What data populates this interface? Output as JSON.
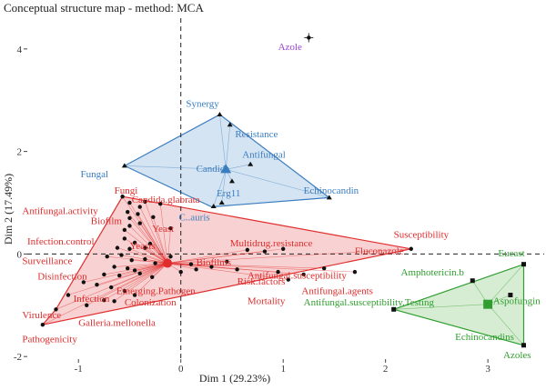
{
  "chart_data": {
    "type": "scatter",
    "title": "Conceptual structure map - method: MCA",
    "xlabel": "Dim 1 (29.23%)",
    "ylabel": "Dim 2 (17.49%)",
    "xlim": [
      -1.5,
      3.55
    ],
    "ylim": [
      -2.05,
      4.6
    ],
    "x_ticks": [
      -1,
      0,
      1,
      2,
      3
    ],
    "y_ticks": [
      -2,
      0,
      2,
      4
    ],
    "grid": "off",
    "reference_lines": {
      "x": 0,
      "y": 0,
      "style": "dashed"
    },
    "colors": {
      "red": "#e02c2c",
      "blue": "#3a7dbf",
      "green": "#2f9e2f",
      "purple": "#9b3fcf",
      "point": "#111111"
    },
    "clusters": [
      {
        "color": "red",
        "fill": "#f6c3c3",
        "hull": [
          [
            -0.57,
            1.12
          ],
          [
            2.25,
            0.1
          ],
          [
            -1.35,
            -1.38
          ],
          [
            -1.22,
            -1.08
          ]
        ],
        "centroid": [
          -0.13,
          -0.18
        ],
        "points": [
          [
            -0.57,
            1.12
          ],
          [
            -0.5,
            1.0
          ],
          [
            -0.35,
            1.02
          ],
          [
            -0.4,
            0.92
          ],
          [
            -0.2,
            0.98
          ],
          [
            -0.52,
            0.82
          ],
          [
            -0.5,
            0.7
          ],
          [
            -0.42,
            0.78
          ],
          [
            -0.27,
            0.72
          ],
          [
            -0.5,
            0.55
          ],
          [
            -0.55,
            0.47
          ],
          [
            -0.4,
            0.6
          ],
          [
            -0.1,
            0.5
          ],
          [
            -0.55,
            0.3
          ],
          [
            -0.45,
            0.22
          ],
          [
            -0.3,
            0.2
          ],
          [
            -0.62,
            0.12
          ],
          [
            -0.5,
            0.1
          ],
          [
            -0.35,
            0.12
          ],
          [
            -0.58,
            -0.02
          ],
          [
            -0.72,
            -0.05
          ],
          [
            -0.48,
            -0.12
          ],
          [
            -0.35,
            -0.1
          ],
          [
            -0.25,
            -0.18
          ],
          [
            -0.65,
            -0.25
          ],
          [
            -0.52,
            -0.28
          ],
          [
            -0.45,
            -0.32
          ],
          [
            -0.75,
            -0.4
          ],
          [
            -0.6,
            -0.42
          ],
          [
            -0.4,
            -0.38
          ],
          [
            -0.28,
            -0.45
          ],
          [
            -0.95,
            -0.55
          ],
          [
            -0.82,
            -0.6
          ],
          [
            -0.68,
            -0.65
          ],
          [
            -0.55,
            -0.72
          ],
          [
            -0.45,
            -0.8
          ],
          [
            -1.1,
            -0.8
          ],
          [
            -0.75,
            -0.9
          ],
          [
            -0.65,
            -0.92
          ],
          [
            -0.92,
            -1.0
          ],
          [
            -0.1,
            -0.05
          ],
          [
            0.1,
            -0.2
          ],
          [
            0.0,
            -0.35
          ],
          [
            0.15,
            -0.3
          ],
          [
            0.3,
            -0.25
          ],
          [
            0.45,
            -0.15
          ],
          [
            0.55,
            -0.3
          ],
          [
            0.65,
            0.08
          ],
          [
            0.82,
            0.05
          ],
          [
            1.0,
            0.1
          ],
          [
            0.95,
            -0.35
          ],
          [
            1.05,
            -0.5
          ],
          [
            1.2,
            -0.4
          ],
          [
            1.4,
            -0.28
          ],
          [
            1.7,
            -0.35
          ],
          [
            2.25,
            0.1
          ],
          [
            -1.22,
            -1.08
          ],
          [
            -1.35,
            -1.38
          ]
        ],
        "labels": [
          [
            "Fungi",
            -0.65,
            1.18
          ],
          [
            "Candida.glabrata",
            -0.48,
            1.0
          ],
          [
            "Antifungal.activity",
            -1.55,
            0.78
          ],
          [
            "Biofilm",
            -0.88,
            0.58
          ],
          [
            "Yeast",
            -0.28,
            0.43
          ],
          [
            "Infection.control",
            -1.5,
            0.18
          ],
          [
            "Yeasts",
            -0.5,
            0.1
          ],
          [
            "Surveillance",
            -1.55,
            -0.2
          ],
          [
            "Multidrug.resistance",
            0.48,
            0.15
          ],
          [
            "Susceptibility",
            2.08,
            0.32
          ],
          [
            "Fluconazole",
            1.7,
            0.0
          ],
          [
            "Biofilms",
            0.15,
            -0.22
          ],
          [
            "Antifungal.susceptibility",
            0.65,
            -0.48
          ],
          [
            "Disinfection",
            -1.4,
            -0.5
          ],
          [
            "Risk.factors",
            0.55,
            -0.6
          ],
          [
            "Antifungal.agents",
            1.18,
            -0.78
          ],
          [
            "Emerging.Pathogen",
            -0.63,
            -0.78
          ],
          [
            "Infection",
            -1.05,
            -0.93
          ],
          [
            "Colonization",
            -0.55,
            -1.0
          ],
          [
            "Mortality",
            0.65,
            -0.98
          ],
          [
            "Virulence",
            -1.55,
            -1.25
          ],
          [
            "Galleria.mellonella",
            -1.0,
            -1.4
          ],
          [
            "Pathogenicity",
            -1.55,
            -1.72
          ]
        ]
      },
      {
        "color": "blue",
        "fill": "#c7dbee",
        "hull": [
          [
            -0.55,
            1.72
          ],
          [
            0.38,
            2.72
          ],
          [
            1.45,
            1.1
          ],
          [
            0.3,
            0.92
          ]
        ],
        "centroid": [
          0.44,
          1.65
        ],
        "points": [
          [
            -0.55,
            1.72
          ],
          [
            0.38,
            2.72
          ],
          [
            0.48,
            2.52
          ],
          [
            0.68,
            1.75
          ],
          [
            0.5,
            1.42
          ],
          [
            0.4,
            1.0
          ],
          [
            0.32,
            0.93
          ],
          [
            1.45,
            1.1
          ]
        ],
        "labels": [
          [
            "Synergy",
            0.05,
            2.87
          ],
          [
            "Resistance",
            0.53,
            2.28
          ],
          [
            "Antifungal",
            0.6,
            1.88
          ],
          [
            "Candida",
            0.15,
            1.6
          ],
          [
            "Fungal",
            -0.98,
            1.5
          ],
          [
            "Erg11",
            0.35,
            1.12
          ],
          [
            "Echinocandin",
            1.2,
            1.18
          ],
          [
            "C..auris",
            -0.02,
            0.65
          ]
        ]
      },
      {
        "color": "green",
        "fill": "#c9e7c4",
        "hull": [
          [
            3.35,
            -0.2
          ],
          [
            3.35,
            -1.78
          ],
          [
            2.08,
            -1.08
          ]
        ],
        "centroid": [
          3.0,
          -0.98
        ],
        "points": [
          [
            3.35,
            -0.2
          ],
          [
            2.85,
            -0.52
          ],
          [
            3.22,
            -0.8
          ],
          [
            2.08,
            -1.08
          ],
          [
            3.35,
            -1.78
          ]
        ],
        "labels": [
          [
            "Eucast",
            3.1,
            -0.05
          ],
          [
            "Amphotericin.b",
            2.15,
            -0.42
          ],
          [
            "Aspofungin",
            3.05,
            -0.98
          ],
          [
            "Antifungal.susceptibility.Testing",
            1.2,
            -1.0
          ],
          [
            "Echinocandins",
            2.68,
            -1.68
          ],
          [
            "Azoles",
            3.15,
            -2.03
          ]
        ]
      },
      {
        "color": "purple",
        "fill": "none",
        "hull": [],
        "centroid": [
          1.25,
          4.22
        ],
        "points": [
          [
            1.25,
            4.22
          ]
        ],
        "labels": [
          [
            "Azole",
            0.95,
            3.98
          ]
        ]
      }
    ]
  }
}
